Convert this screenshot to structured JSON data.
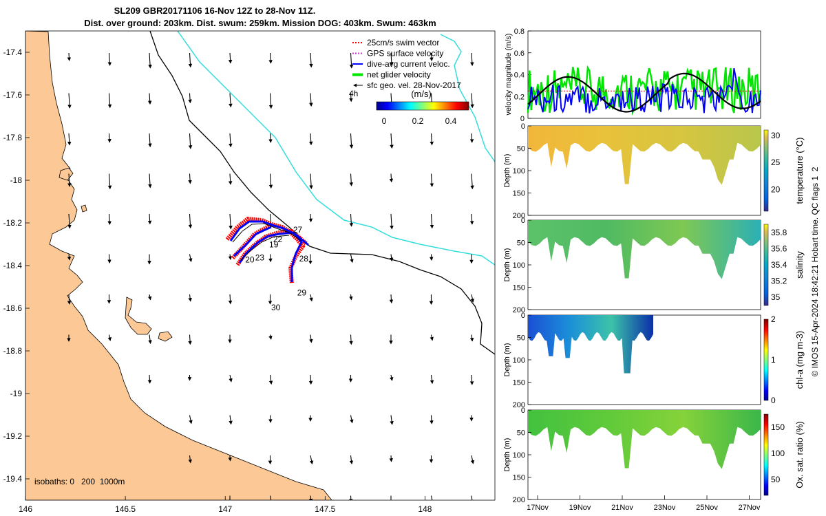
{
  "title": {
    "line1": "SL209 GBR20171106 16-Nov 12Z to 28-Nov 11Z.",
    "line2": "Dist. over ground: 203km. Dist. swum: 259km. Mission DOG: 403km. Swum: 463km"
  },
  "colors": {
    "land": "#fbc896",
    "swim": "#ff0000",
    "gps": "#cc33cc",
    "current": "#0000ff",
    "net": "#00e600",
    "cyan": "#33dddd",
    "track_red": "#ff0000",
    "track_blue": "#0000ff"
  },
  "chart_data": [
    {
      "name": "map",
      "type": "scatter",
      "xlim": [
        146,
        148.35
      ],
      "ylim": [
        -19.5,
        -17.3
      ],
      "xticks": [
        146,
        146.5,
        147,
        147.5,
        148
      ],
      "xtick_labels": [
        "146",
        "146.5",
        "147",
        "147.5",
        "148"
      ],
      "yticks": [
        -17.4,
        -17.6,
        -17.8,
        -18,
        -18.2,
        -18.4,
        -18.6,
        -18.8,
        -19,
        -19.2,
        -19.4
      ],
      "ytick_labels": [
        "-17.4",
        "-17.6",
        "-17.8",
        "-18",
        "-18.2",
        "-18.4",
        "-18.6",
        "-18.8",
        "-19",
        "-19.2",
        "-19.4"
      ],
      "legend": [
        {
          "label": "25cm/s swim vector",
          "color": "#ff0000",
          "style": "dotted"
        },
        {
          "label": "GPS surface velocity",
          "color": "#cc33cc",
          "style": "dotted"
        },
        {
          "label": "dive-avg current veloc.",
          "color": "#0000ff",
          "style": "solid"
        },
        {
          "label": "net glider velocity",
          "color": "#00e600",
          "style": "thick"
        },
        {
          "label": "sfc geo. vel. 28-Nov-2017",
          "color": "#000000",
          "style": "arrow"
        }
      ],
      "legend_extra": "4h",
      "colorbar": {
        "title": "(m/s)",
        "ticks": [
          "0",
          "0.2",
          "0.4"
        ],
        "range": [
          0,
          0.5
        ]
      },
      "isobaths_label": "isobaths: 0   200  1000m",
      "day_labels": [
        {
          "text": "27",
          "x": 147.34,
          "y": -18.245
        },
        {
          "text": "22",
          "x": 147.24,
          "y": -18.29
        },
        {
          "text": "19",
          "x": 147.22,
          "y": -18.315
        },
        {
          "text": "23",
          "x": 147.15,
          "y": -18.375
        },
        {
          "text": "20",
          "x": 147.1,
          "y": -18.385
        },
        {
          "text": "28",
          "x": 147.37,
          "y": -18.38
        },
        {
          "text": "29",
          "x": 147.36,
          "y": -18.54
        },
        {
          "text": "30",
          "x": 147.23,
          "y": -18.61
        }
      ]
    },
    {
      "name": "velocity",
      "type": "line",
      "ylabel": "velocity magnitude (m/s)",
      "ylim": [
        0,
        0.8
      ],
      "yticks": [
        "0",
        "0.2",
        "0.4",
        "0.6",
        "0.8"
      ],
      "series": [
        {
          "name": "net glider velocity",
          "color": "#00e600"
        },
        {
          "name": "dive-avg current veloc.",
          "color": "#0000ff"
        },
        {
          "name": "sfc geo. vel.",
          "color": "#000000"
        },
        {
          "name": "swim speed",
          "color": "#ff0000",
          "value": 0.25
        }
      ]
    },
    {
      "name": "temperature",
      "type": "heatmap",
      "ylabel": "Depth (m)",
      "clabel": "temperature (°C)",
      "yticks": [
        "0",
        "50",
        "100",
        "150",
        "200"
      ],
      "cticks": [
        "20",
        "25",
        "30"
      ],
      "crange": [
        16,
        31
      ]
    },
    {
      "name": "salinity",
      "type": "heatmap",
      "ylabel": "Depth (m)",
      "clabel": "salinity",
      "yticks": [
        "0",
        "50",
        "100",
        "150",
        "200"
      ],
      "cticks": [
        "35",
        "35.2",
        "35.4",
        "35.6",
        "35.8"
      ],
      "crange": [
        34.9,
        35.9
      ]
    },
    {
      "name": "chl-a",
      "type": "heatmap",
      "ylabel": "Depth (m)",
      "clabel": "chl-a (mg m-3)",
      "yticks": [
        "0",
        "50",
        "100",
        "150",
        "200"
      ],
      "cticks": [
        "0",
        "1",
        "2"
      ],
      "crange": [
        0,
        2
      ]
    },
    {
      "name": "oxygen",
      "type": "heatmap",
      "ylabel": "Depth (m)",
      "clabel": "Ox. sat. ratio (%)",
      "yticks": [
        "0",
        "50",
        "100",
        "150",
        "200"
      ],
      "cticks": [
        "50",
        "100",
        "150"
      ],
      "crange": [
        20,
        175
      ]
    }
  ],
  "time_axis": {
    "ticks": [
      "17Nov",
      "19Nov",
      "21Nov",
      "23Nov",
      "25Nov",
      "27Nov"
    ]
  },
  "credit": "© IMOS 15-Apr-2024 18:42:21 Hobart time. QC flags 1  2"
}
